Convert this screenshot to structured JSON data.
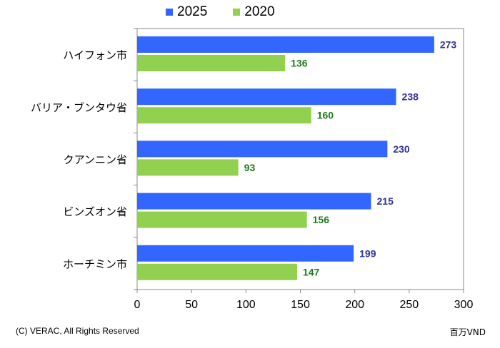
{
  "legend": [
    {
      "label": "2025",
      "color": "#3366ff"
    },
    {
      "label": "2020",
      "color": "#92d050"
    }
  ],
  "footer": {
    "copyright": "(C) VERAC, All Rights Reserved",
    "unit": "百万VND"
  },
  "colors": {
    "series_2025": "#3366ff",
    "series_2020": "#92d050",
    "label_2025": "#333399",
    "label_2020": "#1e7a1e"
  },
  "chart_data": {
    "type": "bar",
    "orientation": "horizontal",
    "categories": [
      "ハイフォン市",
      "バリア・ブンタウ省",
      "クアンニン省",
      "ビンズオン省",
      "ホーチミン市"
    ],
    "series": [
      {
        "name": "2025",
        "values": [
          273,
          238,
          230,
          215,
          199
        ]
      },
      {
        "name": "2020",
        "values": [
          136,
          160,
          93,
          156,
          147
        ]
      }
    ],
    "xlim": [
      0,
      300
    ],
    "xticks": [
      0,
      50,
      100,
      150,
      200,
      250,
      300
    ],
    "grid": false,
    "legend_position": "top"
  }
}
